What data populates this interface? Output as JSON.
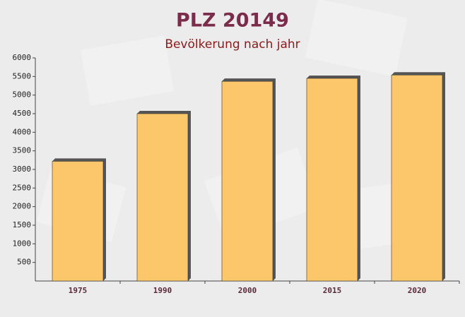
{
  "chart_data": {
    "type": "bar",
    "title": "PLZ 20149",
    "subtitle": "Bevölkerung nach jahr",
    "categories": [
      "1975",
      "1990",
      "2000",
      "2015",
      "2020"
    ],
    "values": [
      3220,
      4500,
      5370,
      5450,
      5540
    ],
    "color": "#fcc76a",
    "ylim": [
      0,
      6000
    ],
    "yticks": [
      500,
      1000,
      1500,
      2000,
      2500,
      3000,
      3500,
      4000,
      4500,
      5000,
      5500,
      6000
    ],
    "grid": false
  }
}
